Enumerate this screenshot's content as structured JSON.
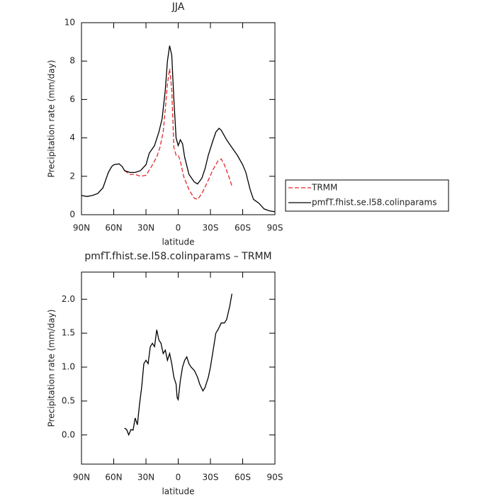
{
  "chart_data": [
    {
      "type": "line",
      "title": "JJA",
      "xlabel": "latitude",
      "ylabel": "Precipitation rate (mm/day)",
      "xlim": [
        90,
        -90
      ],
      "ylim": [
        0,
        10
      ],
      "xticks": [
        {
          "value": 90,
          "label": "90N"
        },
        {
          "value": 60,
          "label": "60N"
        },
        {
          "value": 30,
          "label": "30N"
        },
        0,
        {
          "value": -30,
          "label": "30S"
        },
        {
          "value": -60,
          "label": "60S"
        },
        {
          "value": -90,
          "label": "90S"
        }
      ],
      "yticks": [
        0,
        2,
        4,
        6,
        8,
        10
      ],
      "legend": "right",
      "series": [
        {
          "name": "TRMM",
          "color": "#e8262b",
          "linestyle": "dashed",
          "x": [
            50,
            45,
            40,
            35,
            30,
            25,
            20,
            17,
            14,
            12,
            10,
            8,
            6,
            4,
            2,
            0,
            -2,
            -5,
            -10,
            -15,
            -18,
            -22,
            -28,
            -32,
            -37,
            -40,
            -43,
            -47,
            -50
          ],
          "values": [
            2.3,
            2.1,
            2.1,
            2.0,
            2.05,
            2.5,
            3.0,
            3.5,
            4.3,
            5.5,
            6.8,
            7.6,
            6.5,
            3.5,
            3.1,
            3.1,
            2.8,
            2.0,
            1.3,
            0.85,
            0.8,
            1.1,
            1.8,
            2.3,
            2.8,
            2.9,
            2.6,
            2.0,
            1.5
          ]
        },
        {
          "name": "pmfT.fhist.se.l58.colinparams",
          "color": "#000000",
          "linestyle": "solid",
          "x": [
            90,
            85,
            80,
            75,
            70,
            65,
            62,
            60,
            55,
            52,
            50,
            45,
            40,
            35,
            30,
            27,
            22,
            18,
            15,
            12,
            10,
            8,
            6,
            4,
            2,
            0,
            -2,
            -4,
            -6,
            -10,
            -15,
            -18,
            -22,
            -25,
            -28,
            -32,
            -35,
            -38,
            -40,
            -45,
            -50,
            -55,
            -60,
            -63,
            -67,
            -70,
            -75,
            -80,
            -85,
            -90
          ],
          "values": [
            1.0,
            0.95,
            1.0,
            1.1,
            1.4,
            2.2,
            2.5,
            2.6,
            2.65,
            2.5,
            2.3,
            2.2,
            2.2,
            2.3,
            2.6,
            3.2,
            3.6,
            4.3,
            5.0,
            6.5,
            8.0,
            8.8,
            8.3,
            6.0,
            4.0,
            3.6,
            3.9,
            3.7,
            3.0,
            2.1,
            1.7,
            1.6,
            1.9,
            2.4,
            3.1,
            3.8,
            4.3,
            4.5,
            4.4,
            3.9,
            3.5,
            3.1,
            2.6,
            2.2,
            1.3,
            0.8,
            0.6,
            0.3,
            0.2,
            0.15
          ]
        }
      ]
    },
    {
      "type": "line",
      "title": "pmfT.fhist.se.l58.colinparams – TRMM",
      "xlabel": "latitude",
      "ylabel": "Precipitation rate (mm/day)",
      "xlim": [
        90,
        -90
      ],
      "ylim": [
        -0.43,
        2.4
      ],
      "xticks": [
        {
          "value": 90,
          "label": "90N"
        },
        {
          "value": 60,
          "label": "60N"
        },
        {
          "value": 30,
          "label": "30N"
        },
        0,
        {
          "value": -30,
          "label": "30S"
        },
        {
          "value": -60,
          "label": "60S"
        },
        {
          "value": -90,
          "label": "90S"
        }
      ],
      "yticks": [
        {
          "value": 0,
          "label": "0.0"
        },
        0.5,
        {
          "value": 1,
          "label": "1.0"
        },
        1.5,
        {
          "value": 2,
          "label": "2.0"
        }
      ],
      "color": "#000000",
      "x": [
        50,
        48,
        46,
        44,
        42,
        40,
        38,
        36,
        34,
        32,
        30,
        28,
        26,
        24,
        22,
        20,
        18,
        16,
        14,
        12,
        10,
        8,
        6,
        4,
        2,
        1,
        0,
        -2,
        -4,
        -6,
        -8,
        -10,
        -12,
        -15,
        -18,
        -20,
        -23,
        -25,
        -28,
        -30,
        -33,
        -35,
        -37,
        -40,
        -43,
        -45,
        -48,
        -50
      ],
      "values": [
        0.1,
        0.08,
        0.0,
        0.08,
        0.07,
        0.25,
        0.15,
        0.45,
        0.7,
        1.05,
        1.1,
        1.05,
        1.3,
        1.35,
        1.3,
        1.55,
        1.4,
        1.35,
        1.2,
        1.25,
        1.1,
        1.2,
        1.05,
        0.85,
        0.75,
        0.55,
        0.52,
        0.8,
        1.0,
        1.1,
        1.15,
        1.05,
        1.0,
        0.95,
        0.85,
        0.75,
        0.65,
        0.7,
        0.85,
        1.0,
        1.3,
        1.5,
        1.55,
        1.65,
        1.65,
        1.7,
        1.9,
        2.08
      ]
    }
  ]
}
